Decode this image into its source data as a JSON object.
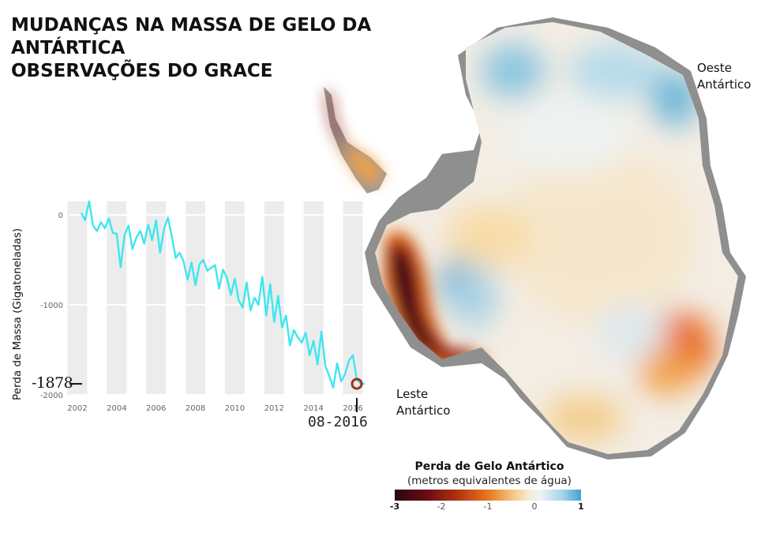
{
  "title": {
    "line1": "MUDANÇAS NA MASSA DE GELO DA",
    "line2": "ANTÁRTICA",
    "line3": "OBSERVAÇÕES DO GRACE"
  },
  "map": {
    "label_west_line1": "Oeste",
    "label_west_line2": "Antártico",
    "label_east_line1": "Leste",
    "label_east_line2": "Antártico",
    "legend_title": "Perda de Gelo Antártico",
    "legend_subtitle": "(metros equivalentes de água)",
    "legend_ticks": [
      "-3",
      "-2",
      "-1",
      "0",
      "1"
    ],
    "legend_colors": [
      "#2a0514",
      "#6e0c12",
      "#b23310",
      "#e8761e",
      "#f6c98a",
      "#f4ecd6",
      "#a9d3e8",
      "#3fa3cf"
    ]
  },
  "current": {
    "value_label": "-1878",
    "date_label": "08-2016"
  },
  "chart_data": {
    "type": "line",
    "ylabel": "Perda de Massa (Gigatoneladas)",
    "xlabel": "",
    "xlim": [
      2001.6,
      2016.6
    ],
    "ylim": [
      -2000,
      150
    ],
    "x_ticks": [
      2002,
      2004,
      2006,
      2008,
      2010,
      2012,
      2014,
      2016
    ],
    "y_ticks": [
      0,
      -1000,
      -2000
    ],
    "color": "#3ee6f0",
    "highlight_color": "#a0341c",
    "series": [
      {
        "x": [
          2002.2,
          2002.4,
          2002.6,
          2002.8,
          2003.0,
          2003.2,
          2003.4,
          2003.6,
          2003.8,
          2004.0,
          2004.2,
          2004.4,
          2004.6,
          2004.8,
          2005.0,
          2005.2,
          2005.4,
          2005.6,
          2005.8,
          2006.0,
          2006.2,
          2006.4,
          2006.6,
          2006.8,
          2007.0,
          2007.2,
          2007.4,
          2007.6,
          2007.8,
          2008.0,
          2008.2,
          2008.4,
          2008.6,
          2008.8,
          2009.0,
          2009.2,
          2009.4,
          2009.6,
          2009.8,
          2010.0,
          2010.2,
          2010.4,
          2010.6,
          2010.8,
          2011.0,
          2011.2,
          2011.4,
          2011.6,
          2011.8,
          2012.0,
          2012.2,
          2012.4,
          2012.6,
          2012.8,
          2013.0,
          2013.2,
          2013.4,
          2013.6,
          2013.8,
          2014.0,
          2014.2,
          2014.4,
          2014.6,
          2014.8,
          2015.0,
          2015.2,
          2015.4,
          2015.6,
          2015.8,
          2016.0,
          2016.2,
          2016.4,
          2016.6
        ],
        "y": [
          20,
          -60,
          150,
          -120,
          -180,
          -80,
          -150,
          -40,
          -200,
          -210,
          -580,
          -220,
          -120,
          -380,
          -250,
          -180,
          -320,
          -110,
          -280,
          -60,
          -420,
          -160,
          -30,
          -240,
          -480,
          -420,
          -520,
          -720,
          -530,
          -780,
          -550,
          -500,
          -620,
          -590,
          -560,
          -820,
          -610,
          -700,
          -890,
          -710,
          -950,
          -1030,
          -750,
          -1060,
          -920,
          -1000,
          -690,
          -1120,
          -770,
          -1190,
          -900,
          -1250,
          -1120,
          -1450,
          -1280,
          -1360,
          -1420,
          -1310,
          -1560,
          -1400,
          -1660,
          -1300,
          -1680,
          -1790,
          -1920,
          -1650,
          -1850,
          -1770,
          -1620,
          -1560,
          -1830,
          -1878,
          -1878
        ]
      }
    ]
  }
}
